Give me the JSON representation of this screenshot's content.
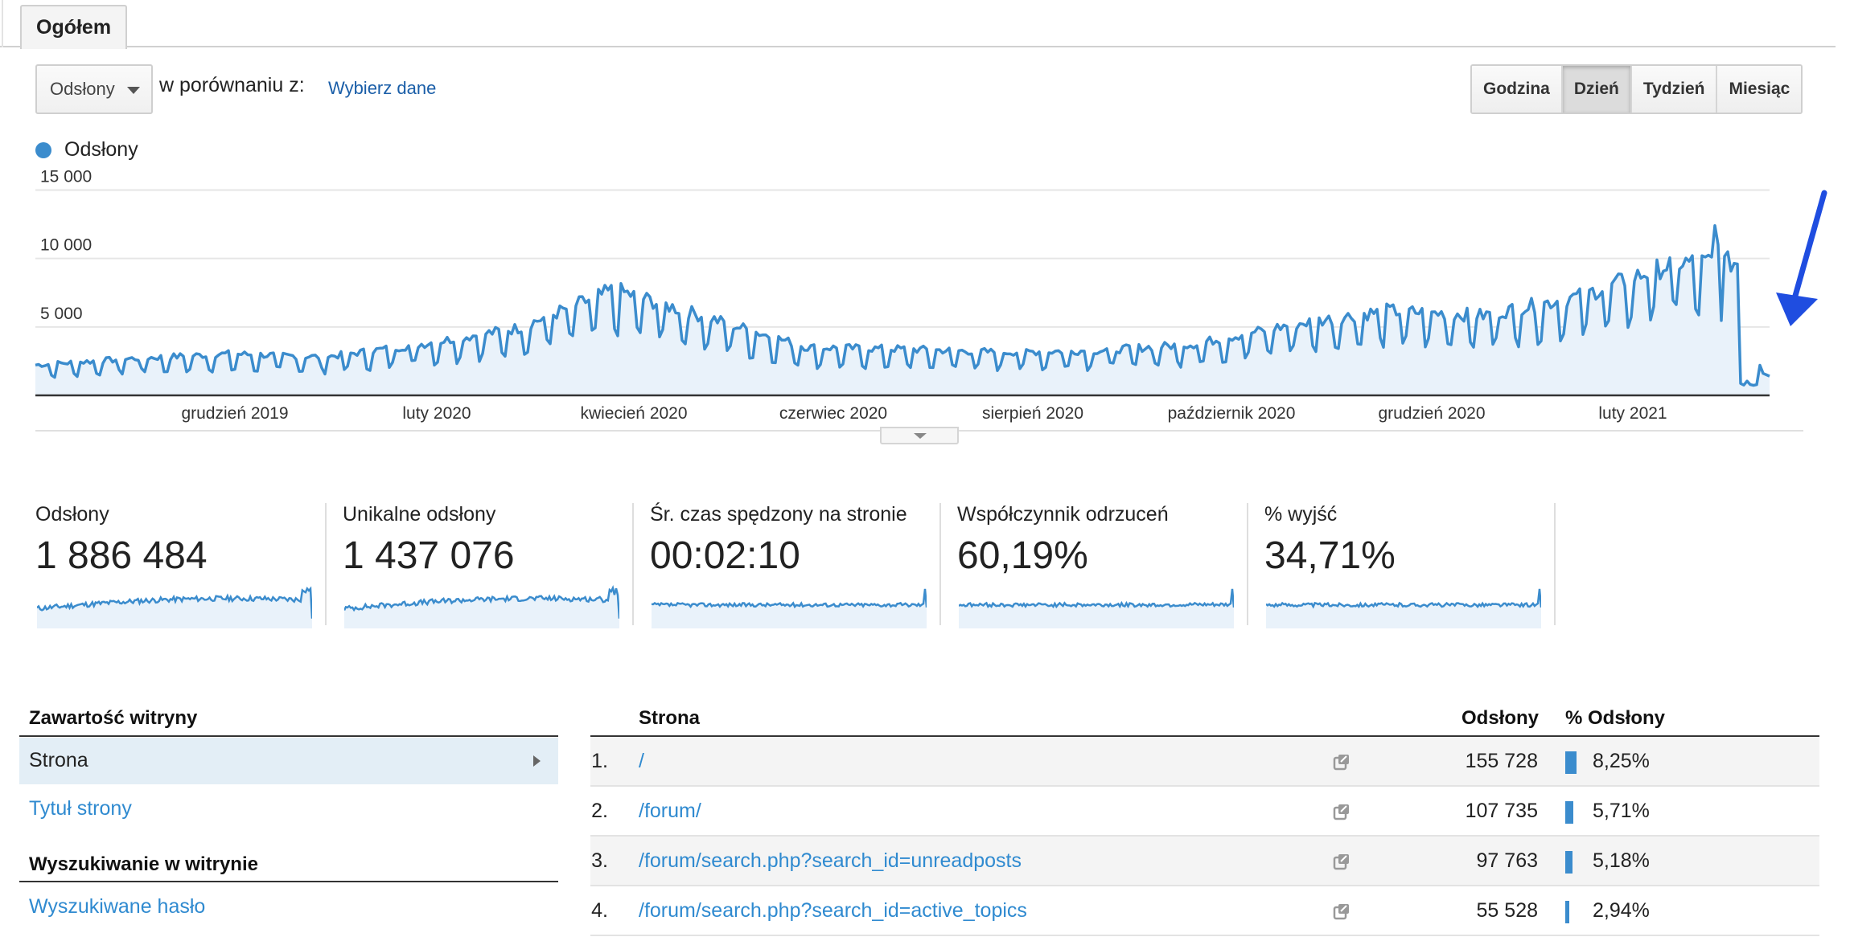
{
  "tab": {
    "label": "Ogółem"
  },
  "controls": {
    "metric_select": "Odsłony",
    "compare_text": "w porównaniu z:",
    "choose_link": "Wybierz dane",
    "periods": [
      "Godzina",
      "Dzień",
      "Tydzień",
      "Miesiąc"
    ],
    "active_period": "Dzień"
  },
  "legend": {
    "series_name": "Odsłony",
    "color": "#3b8ccd"
  },
  "chart_data": {
    "type": "area",
    "series": [
      {
        "name": "Odsłony"
      }
    ],
    "yticks": [
      "15 000",
      "10 000",
      "5 000"
    ],
    "ylim": [
      0,
      15000
    ],
    "xticks": [
      "grudzień 2019",
      "luty 2020",
      "kwiecień 2020",
      "czerwiec 2020",
      "sierpień 2020",
      "październik 2020",
      "grudzień 2020",
      "luty 2021"
    ],
    "monthly_levels": [
      {
        "month": "2019-10",
        "value": 1900
      },
      {
        "month": "2019-11",
        "value": 2300
      },
      {
        "month": "2019-12",
        "value": 2600
      },
      {
        "month": "2020-01",
        "value": 2400
      },
      {
        "month": "2020-02",
        "value": 3200
      },
      {
        "month": "2020-03",
        "value": 4200
      },
      {
        "month": "2020-04",
        "value": 6600
      },
      {
        "month": "2020-05",
        "value": 4800
      },
      {
        "month": "2020-06",
        "value": 3000
      },
      {
        "month": "2020-07",
        "value": 2900
      },
      {
        "month": "2020-08",
        "value": 2700
      },
      {
        "month": "2020-09",
        "value": 2800
      },
      {
        "month": "2020-10",
        "value": 3200
      },
      {
        "month": "2020-11",
        "value": 4400
      },
      {
        "month": "2020-12",
        "value": 5300
      },
      {
        "month": "2021-01",
        "value": 5000
      },
      {
        "month": "2021-02",
        "value": 6200
      },
      {
        "month": "2021-03",
        "value": 8300
      },
      {
        "month": "2021-03-end",
        "value": 500
      }
    ],
    "peak": {
      "value": 12400,
      "date": "late March 2021"
    },
    "grid": true,
    "area_fill": "#e9f2fa",
    "line_color": "#3b8ccd"
  },
  "metrics": [
    {
      "label": "Odsłony",
      "value": "1 886 484"
    },
    {
      "label": "Unikalne odsłony",
      "value": "1 437 076"
    },
    {
      "label": "Śr. czas spędzony na stronie",
      "value": "00:02:10"
    },
    {
      "label": "Współczynnik odrzuceń",
      "value": "60,19%"
    },
    {
      "label": "% wyjść",
      "value": "34,71%"
    }
  ],
  "sidebar": {
    "section1": "Zawartość witryny",
    "active_item": "Strona",
    "link1": "Tytuł strony",
    "section2": "Wyszukiwanie w witrynie",
    "link2": "Wyszukiwane hasło"
  },
  "table": {
    "headers": {
      "page": "Strona",
      "views": "Odsłony",
      "pct": "% Odsłony"
    },
    "rows": [
      {
        "idx": "1.",
        "path": "/",
        "views": "155 728",
        "pct": "8,25%",
        "share": 0.0825
      },
      {
        "idx": "2.",
        "path": "/forum/",
        "views": "107 735",
        "pct": "5,71%",
        "share": 0.0571
      },
      {
        "idx": "3.",
        "path": "/forum/search.php?search_id=unreadposts",
        "views": "97 763",
        "pct": "5,18%",
        "share": 0.0518
      },
      {
        "idx": "4.",
        "path": "/forum/search.php?search_id=active_topics",
        "views": "55 528",
        "pct": "2,94%",
        "share": 0.0294
      }
    ]
  },
  "annotation": {
    "arrow_color": "#1f4de0"
  }
}
